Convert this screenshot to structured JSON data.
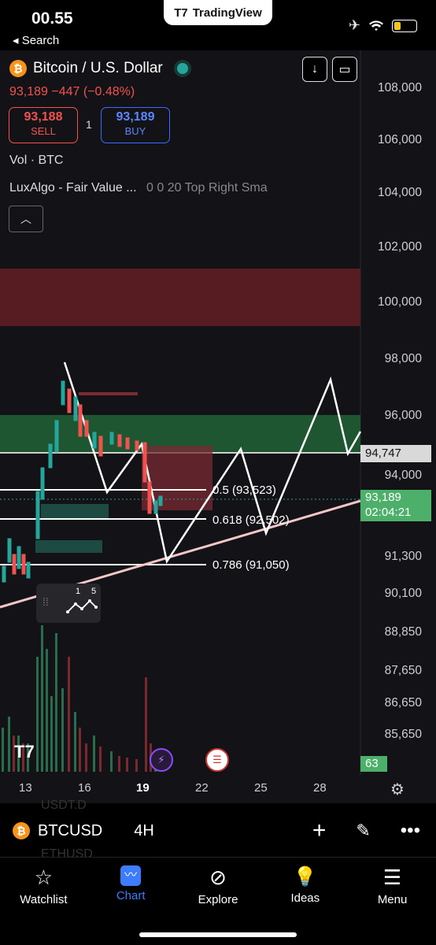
{
  "status": {
    "time": "00.55",
    "back_label": "◂ Search",
    "app_pill": "TradingView"
  },
  "header": {
    "symbol": "Bitcoin / U.S. Dollar",
    "price_change": "93,189  −447 (−0.48%)",
    "sell_price": "93,188",
    "sell_label": "SELL",
    "buy_price": "93,189",
    "buy_label": "BUY",
    "quantity": "1",
    "volume_label": "Vol · BTC",
    "indicator_name": "LuxAlgo - Fair Value ...",
    "indicator_params": "0 0 20 Top Right Sma"
  },
  "price_axis": [
    "108,000",
    "106,000",
    "104,000",
    "102,000",
    "100,000",
    "98,000",
    "96,000",
    "94,000",
    "91,300",
    "90,100",
    "88,850",
    "87,650",
    "86,650",
    "85,650"
  ],
  "time_axis": [
    "13",
    "16",
    "19",
    "22",
    "25",
    "28"
  ],
  "tags": {
    "level": "94,747",
    "last_price": "93,189",
    "countdown": "02:04:21",
    "volume_tag": "63"
  },
  "fib_levels": [
    "0.5 (93,523)",
    "0.618 (92,502)",
    "0.786 (91,050)"
  ],
  "draw_tool": {
    "left_num": "1",
    "right_num": "5"
  },
  "toolbar": {
    "ticker": "BTCUSD",
    "interval": "4H",
    "ghost_top": "USDT.D",
    "ghost_bottom": "ETHUSD"
  },
  "tabs": [
    {
      "label": "Watchlist",
      "icon": "star-icon"
    },
    {
      "label": "Chart",
      "icon": "chart-icon"
    },
    {
      "label": "Explore",
      "icon": "compass-icon"
    },
    {
      "label": "Ideas",
      "icon": "lightbulb-icon"
    },
    {
      "label": "Menu",
      "icon": "menu-icon"
    }
  ],
  "colors": {
    "up": "#26a69a",
    "down": "#ef5350",
    "accent": "#3d7bff",
    "btc": "#f7931a"
  }
}
